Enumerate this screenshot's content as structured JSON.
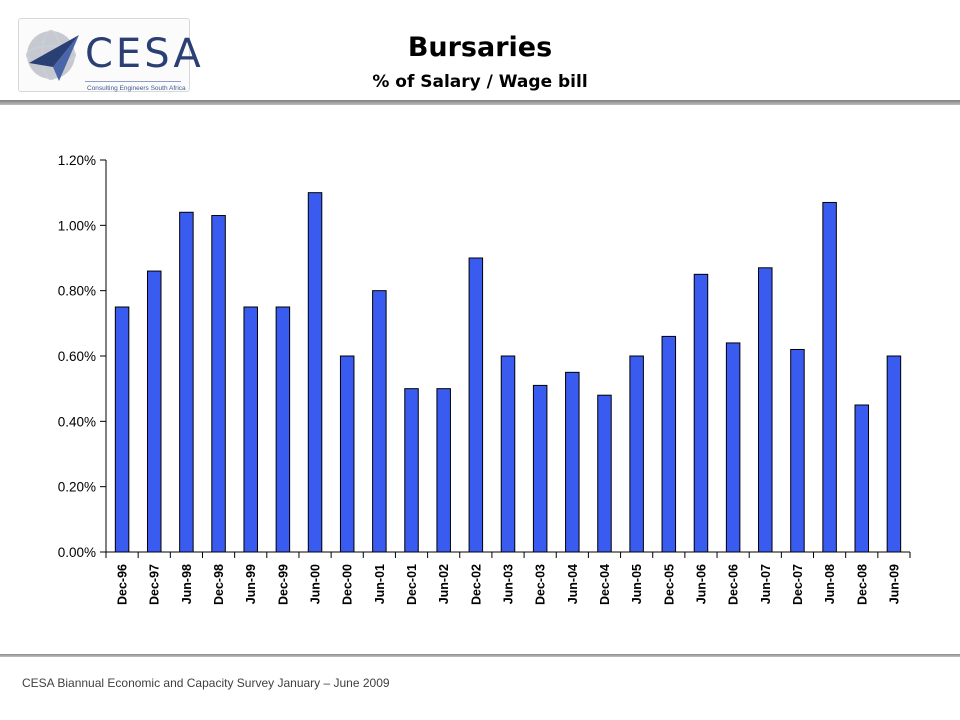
{
  "header": {
    "title": "Bursaries",
    "subtitle": "% of Salary / Wage bill"
  },
  "logo": {
    "wordmark": "CESA",
    "tagline": "Consulting Engineers South Africa",
    "colors": {
      "primary": "#2a3f73",
      "light": "#9fb1d6",
      "gray": "#7d8794"
    }
  },
  "footer": {
    "text": "CESA Biannual Economic and Capacity Survey January – June 2009"
  },
  "chart_data": {
    "type": "bar",
    "title": "Bursaries",
    "subtitle": "% of Salary / Wage bill",
    "xlabel": "",
    "ylabel": "",
    "categories": [
      "Dec-96",
      "Dec-97",
      "Jun-98",
      "Dec-98",
      "Jun-99",
      "Dec-99",
      "Jun-00",
      "Dec-00",
      "Jun-01",
      "Dec-01",
      "Jun-02",
      "Dec-02",
      "Jun-03",
      "Dec-03",
      "Jun-04",
      "Dec-04",
      "Jun-05",
      "Dec-05",
      "Jun-06",
      "Dec-06",
      "Jun-07",
      "Dec-07",
      "Jun-08",
      "Dec-08",
      "Jun-09"
    ],
    "values": [
      0.75,
      0.86,
      1.04,
      1.03,
      0.75,
      0.75,
      1.1,
      0.6,
      0.8,
      0.5,
      0.5,
      0.9,
      0.6,
      0.51,
      0.55,
      0.48,
      0.6,
      0.66,
      0.85,
      0.64,
      0.87,
      0.62,
      1.07,
      0.45,
      0.6
    ],
    "value_unit": "%",
    "ylim": [
      0,
      1.2
    ],
    "yticks": [
      "0.00%",
      "0.20%",
      "0.40%",
      "0.60%",
      "0.80%",
      "1.00%",
      "1.20%"
    ],
    "ytick_values": [
      0,
      0.2,
      0.4,
      0.6,
      0.8,
      1.0,
      1.2
    ],
    "grid": false,
    "legend": "none",
    "bar_color": "#3a5bf0",
    "bar_edge_color": "#000000"
  }
}
